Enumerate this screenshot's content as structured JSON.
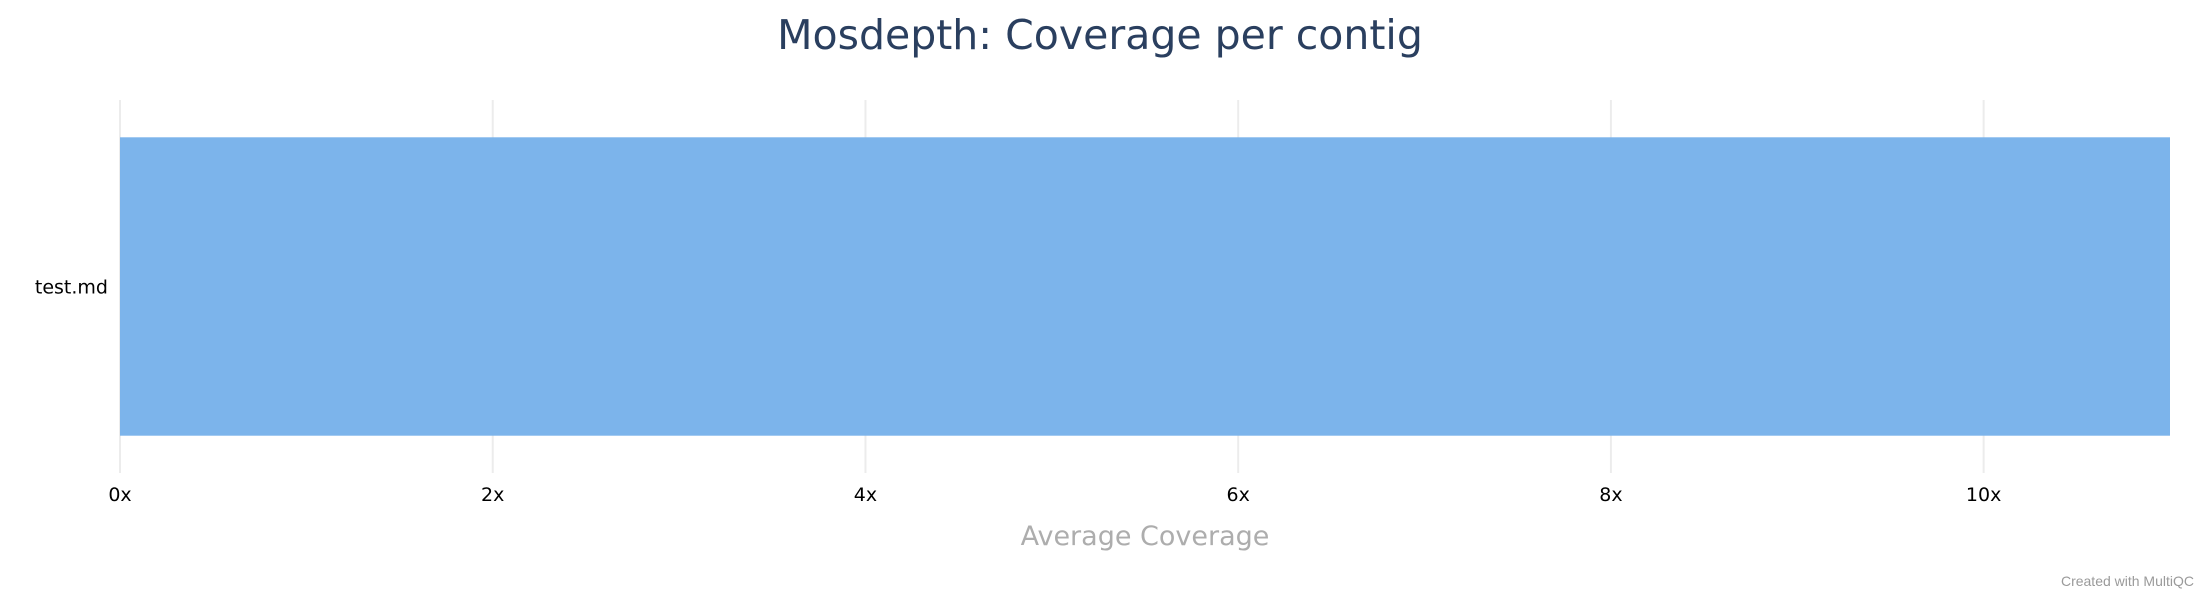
{
  "chart_data": {
    "type": "bar",
    "orientation": "horizontal",
    "title": "Mosdepth: Coverage per contig",
    "categories": [
      "test.md"
    ],
    "series": [
      {
        "values": [
          11.0
        ],
        "color": "#7cb4eb"
      }
    ],
    "xlabel": "Average Coverage",
    "ylabel": "",
    "xlim": [
      0,
      11
    ],
    "x_ticks": [
      0,
      2,
      4,
      6,
      8,
      10
    ],
    "tick_suffix": "x",
    "grid": true,
    "legend": false
  },
  "credit": "Created with MultiQC"
}
